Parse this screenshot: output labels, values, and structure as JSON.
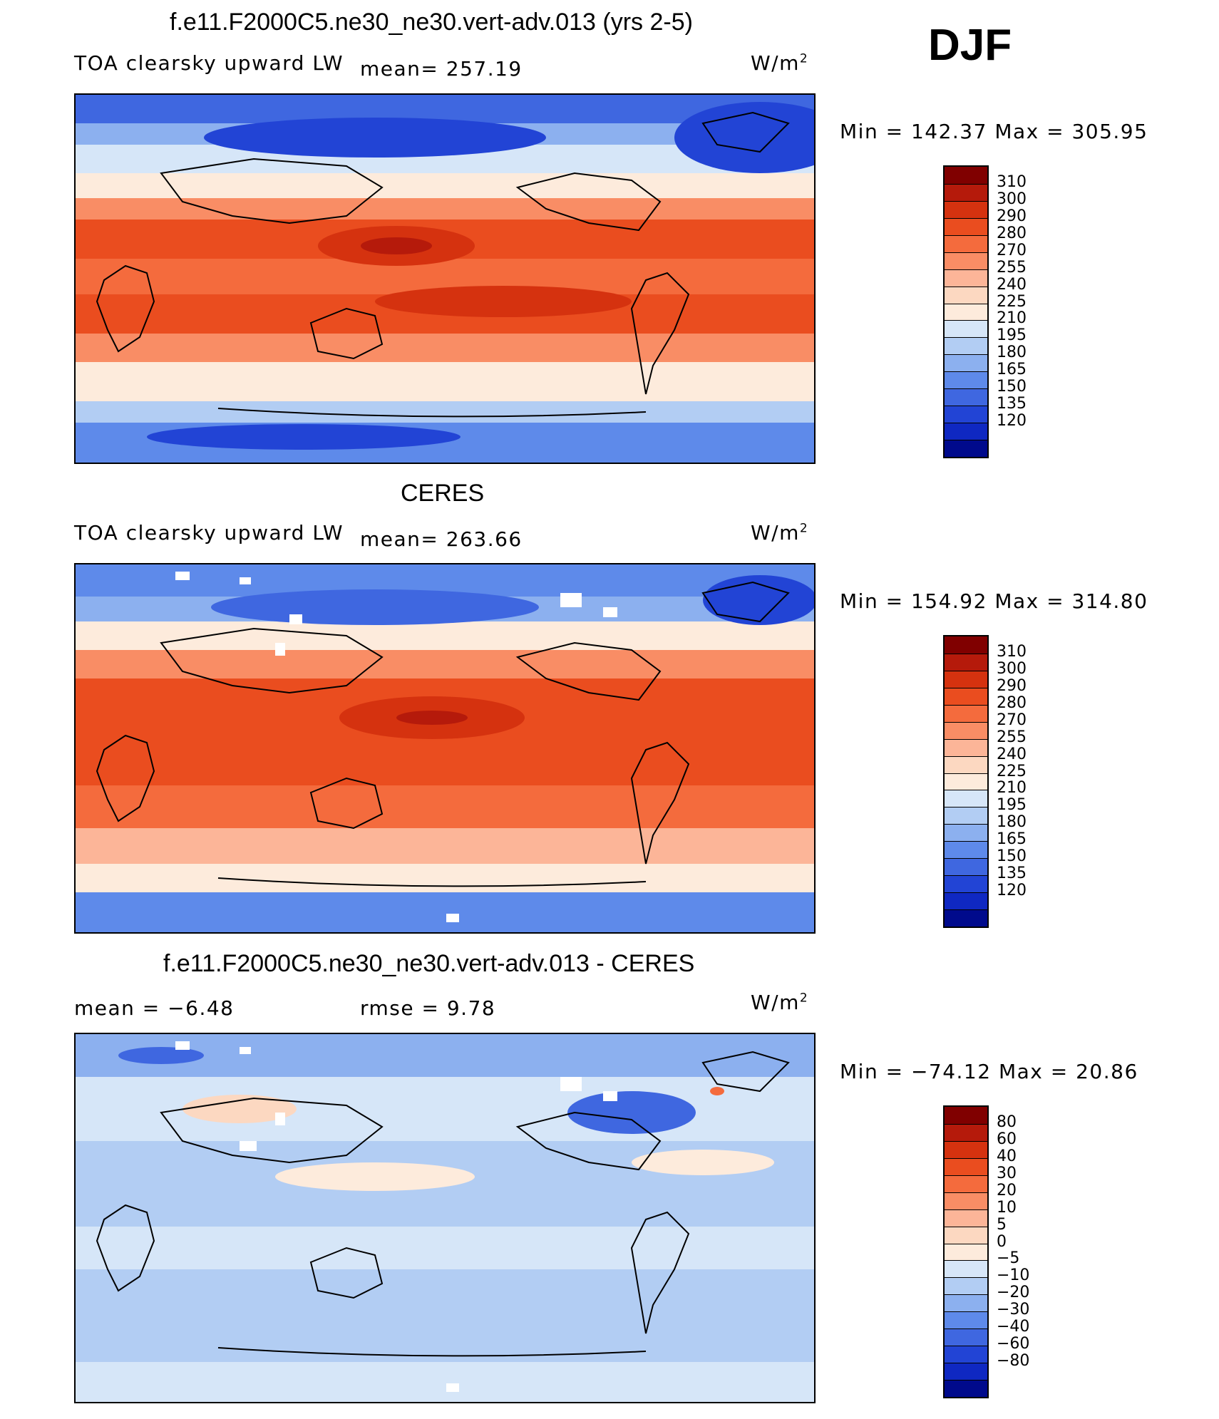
{
  "season": "DJF",
  "panels": [
    {
      "title": "f.e11.F2000C5.ne30_ne30.vert-adv.013 (yrs 2-5)",
      "left_text": "TOA clearsky upward LW",
      "mid_text": "mean= 257.19",
      "units": "W/m",
      "units_sup": "2",
      "minmax": "Min  =  142.37  Max  =  305.95",
      "cbar_labels": [
        "310",
        "300",
        "290",
        "280",
        "270",
        "255",
        "240",
        "225",
        "210",
        "195",
        "180",
        "165",
        "150",
        "135",
        "120"
      ],
      "cbar_colors": [
        "#800000",
        "#b51a0b",
        "#d5320f",
        "#ea4d1f",
        "#f46b3d",
        "#f98d65",
        "#fcb598",
        "#fcd8c1",
        "#fdebdc",
        "#d6e6f8",
        "#b2cdf3",
        "#8cb0ef",
        "#5e8aea",
        "#3f67e0",
        "#2244d5",
        "#0f28c2",
        "#000a8c"
      ]
    },
    {
      "title": "CERES",
      "left_text": "TOA clearsky upward LW",
      "mid_text": "mean= 263.66",
      "units": "W/m",
      "units_sup": "2",
      "minmax": "Min  =  154.92  Max  =  314.80",
      "cbar_labels": [
        "310",
        "300",
        "290",
        "280",
        "270",
        "255",
        "240",
        "225",
        "210",
        "195",
        "180",
        "165",
        "150",
        "135",
        "120"
      ],
      "cbar_colors": [
        "#800000",
        "#b51a0b",
        "#d5320f",
        "#ea4d1f",
        "#f46b3d",
        "#f98d65",
        "#fcb598",
        "#fcd8c1",
        "#fdebdc",
        "#d6e6f8",
        "#b2cdf3",
        "#8cb0ef",
        "#5e8aea",
        "#3f67e0",
        "#2244d5",
        "#0f28c2",
        "#000a8c"
      ]
    },
    {
      "title": "f.e11.F2000C5.ne30_ne30.vert-adv.013 - CERES",
      "left_text": "mean =    −6.48",
      "mid_text": "rmse =    9.78",
      "units": "W/m",
      "units_sup": "2",
      "minmax": "Min  =  −74.12  Max  =    20.86",
      "cbar_labels": [
        "80",
        "60",
        "40",
        "30",
        "20",
        "10",
        "5",
        "0",
        "−5",
        "−10",
        "−20",
        "−30",
        "−40",
        "−60",
        "−80"
      ],
      "cbar_colors": [
        "#800000",
        "#b51a0b",
        "#d5320f",
        "#ea4d1f",
        "#f46b3d",
        "#f98d65",
        "#fcb598",
        "#fcd8c1",
        "#fdebdc",
        "#d6e6f8",
        "#b2cdf3",
        "#8cb0ef",
        "#5e8aea",
        "#3f67e0",
        "#2244d5",
        "#0f28c2",
        "#000a8c"
      ]
    }
  ]
}
